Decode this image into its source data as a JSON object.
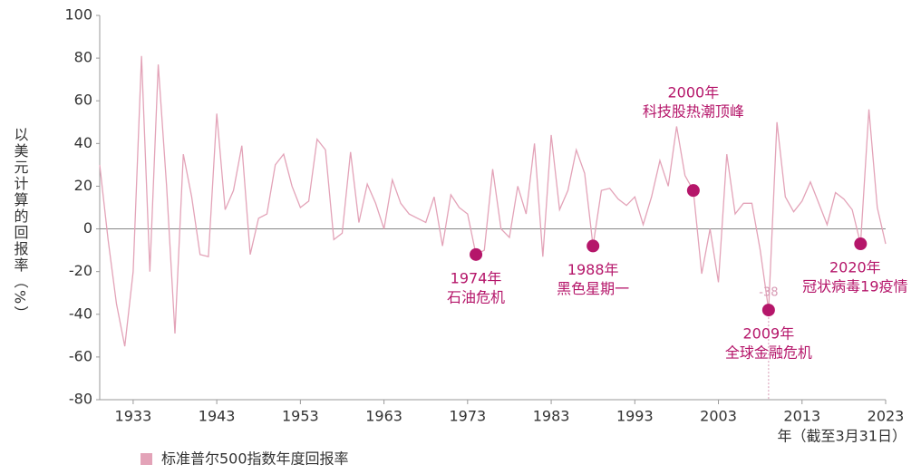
{
  "chart_data": {
    "type": "line",
    "y_label": "以美元计算的回报率（%）",
    "x_label": "年（截至3月31日）",
    "x": [
      1929,
      1930,
      1931,
      1932,
      1933,
      1934,
      1935,
      1936,
      1937,
      1938,
      1939,
      1940,
      1941,
      1942,
      1943,
      1944,
      1945,
      1946,
      1947,
      1948,
      1949,
      1950,
      1951,
      1952,
      1953,
      1954,
      1955,
      1956,
      1957,
      1958,
      1959,
      1960,
      1961,
      1962,
      1963,
      1964,
      1965,
      1966,
      1967,
      1968,
      1969,
      1970,
      1971,
      1972,
      1973,
      1974,
      1975,
      1976,
      1977,
      1978,
      1979,
      1980,
      1981,
      1982,
      1983,
      1984,
      1985,
      1986,
      1987,
      1988,
      1989,
      1990,
      1991,
      1992,
      1993,
      1994,
      1995,
      1996,
      1997,
      1998,
      1999,
      2000,
      2001,
      2002,
      2003,
      2004,
      2005,
      2006,
      2007,
      2008,
      2009,
      2010,
      2011,
      2012,
      2013,
      2014,
      2015,
      2016,
      2017,
      2018,
      2019,
      2020,
      2021,
      2022,
      2023
    ],
    "series": [
      {
        "name": "标准普尔500指数年度回报率",
        "color": "#e3a3b8",
        "values": [
          30,
          -5,
          -35,
          -55,
          -20,
          81,
          -20,
          77,
          20,
          -49,
          35,
          15,
          -12,
          -13,
          54,
          9,
          18,
          39,
          -12,
          5,
          7,
          30,
          35,
          20,
          10,
          13,
          42,
          37,
          -5,
          -2,
          36,
          3,
          21,
          12,
          0,
          23,
          12,
          7,
          5,
          3,
          15,
          -8,
          16,
          10,
          7,
          -12,
          -10,
          28,
          0,
          -4,
          20,
          7,
          40,
          -13,
          44,
          9,
          18,
          37,
          26,
          -8,
          18,
          19,
          14,
          11,
          15,
          2,
          15,
          32,
          20,
          48,
          25,
          18,
          -21,
          0,
          -25,
          35,
          7,
          12,
          12,
          -10,
          -38,
          50,
          15,
          8,
          13,
          22,
          12,
          2,
          17,
          14,
          9,
          -7,
          56,
          10,
          -7
        ]
      }
    ],
    "xlim": [
      1929,
      2023
    ],
    "xticks": [
      1933,
      1943,
      1953,
      1963,
      1973,
      1983,
      1993,
      2003,
      2013,
      2023
    ],
    "ylim": [
      -80,
      100
    ],
    "yticks": [
      -80,
      -60,
      -40,
      -20,
      0,
      20,
      40,
      60,
      80,
      100
    ],
    "annotations": [
      {
        "x": 1974,
        "y": -12,
        "text": [
          "1974年",
          "石油危机"
        ]
      },
      {
        "x": 1988,
        "y": -8,
        "text": [
          "1988年",
          "黑色星期一"
        ]
      },
      {
        "x": 2000,
        "y": 18,
        "text": [
          "2000年",
          "科技股热潮顶峰"
        ]
      },
      {
        "x": 2009,
        "y": -38,
        "value_label": -38,
        "text": [
          "2009年",
          "全球金融危机"
        ]
      },
      {
        "x": 2020,
        "y": -7,
        "text": [
          "2020年",
          "冠状病毒19疫情"
        ]
      }
    ],
    "marker_color": "#b5166a"
  }
}
